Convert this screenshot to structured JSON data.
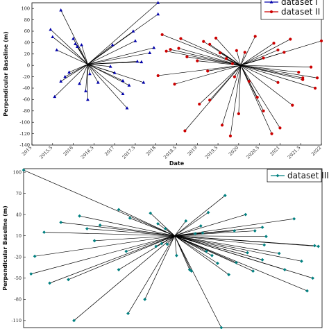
{
  "chart_data": [
    {
      "type": "scatter",
      "xlabel": "Date",
      "ylabel": "Perpendicular Baseline (m)",
      "xlim": [
        2015,
        2022
      ],
      "ylim": [
        -140,
        110
      ],
      "xticks": [
        "2015",
        "2015.5",
        "2016",
        "2016.5",
        "2017",
        "2017.5",
        "2018",
        "2018.5",
        "2019",
        "2019.5",
        "2020",
        "2020.5",
        "2021",
        "2021.5",
        "2022"
      ],
      "yticks": [
        "100",
        "80",
        "60",
        "40",
        "20",
        "0",
        "-20",
        "-40",
        "-60",
        "-80",
        "-100",
        "-120",
        "-140"
      ],
      "legend_position": "top-right",
      "series": [
        {
          "name": "dataset I",
          "color": "#0000aa",
          "marker": "triangle",
          "master": [
            2016.35,
            2
          ],
          "points": [
            [
              2015.7,
              97
            ],
            [
              2015.45,
              63
            ],
            [
              2015.5,
              50
            ],
            [
              2015.6,
              27
            ],
            [
              2015.7,
              -28
            ],
            [
              2015.8,
              -20
            ],
            [
              2015.55,
              -55
            ],
            [
              2016.0,
              47
            ],
            [
              2016.05,
              38
            ],
            [
              2016.1,
              33
            ],
            [
              2016.2,
              36
            ],
            [
              2016.3,
              -45
            ],
            [
              2016.35,
              -60
            ],
            [
              2016.9,
              -2
            ],
            [
              2016.95,
              36
            ],
            [
              2017.2,
              -50
            ],
            [
              2017.3,
              -75
            ],
            [
              2017.35,
              -35
            ],
            [
              2017.45,
              60
            ],
            [
              2017.5,
              43
            ],
            [
              2017.55,
              7
            ],
            [
              2017.65,
              6
            ],
            [
              2017.85,
              22
            ],
            [
              2017.95,
              31
            ],
            [
              2018.05,
              90
            ],
            [
              2017.7,
              -30
            ],
            [
              2016.4,
              -15
            ],
            [
              2016.6,
              -30
            ],
            [
              2017.0,
              -13
            ],
            [
              2017.2,
              -27
            ],
            [
              2015.9,
              -12
            ],
            [
              2016.15,
              -32
            ],
            [
              2018.05,
              110
            ]
          ]
        },
        {
          "name": "dataset II",
          "color": "#cc0000",
          "marker": "circle",
          "master": [
            2020.05,
            0
          ],
          "points": [
            [
              2018.15,
              54
            ],
            [
              2018.25,
              25
            ],
            [
              2018.35,
              28
            ],
            [
              2018.55,
              30
            ],
            [
              2018.6,
              47
            ],
            [
              2018.75,
              15
            ],
            [
              2019.0,
              8
            ],
            [
              2019.15,
              42
            ],
            [
              2019.3,
              37
            ],
            [
              2019.45,
              48
            ],
            [
              2019.55,
              22
            ],
            [
              2019.7,
              12
            ],
            [
              2019.85,
              3
            ],
            [
              2019.95,
              26
            ],
            [
              2020.15,
              23
            ],
            [
              2020.4,
              51
            ],
            [
              2020.6,
              13
            ],
            [
              2020.85,
              39
            ],
            [
              2020.95,
              27
            ],
            [
              2021.1,
              23
            ],
            [
              2021.25,
              46
            ],
            [
              2021.45,
              -12
            ],
            [
              2021.55,
              -25
            ],
            [
              2021.75,
              -3
            ],
            [
              2021.85,
              -40
            ],
            [
              2021.9,
              -22
            ],
            [
              2022.0,
              43
            ],
            [
              2018.05,
              -18
            ],
            [
              2018.45,
              -33
            ],
            [
              2018.7,
              -115
            ],
            [
              2019.05,
              -68
            ],
            [
              2019.3,
              -61
            ],
            [
              2019.6,
              -105
            ],
            [
              2019.8,
              -124
            ],
            [
              2020.0,
              -85
            ],
            [
              2020.25,
              -28
            ],
            [
              2020.45,
              -56
            ],
            [
              2020.6,
              -80
            ],
            [
              2020.8,
              -120
            ],
            [
              2021.0,
              -110
            ],
            [
              2021.3,
              -70
            ],
            [
              2021.55,
              -22
            ],
            [
              2020.95,
              -30
            ],
            [
              2019.25,
              -10
            ],
            [
              2019.9,
              -20
            ]
          ]
        }
      ]
    },
    {
      "type": "scatter",
      "xlabel": "",
      "ylabel": "Perpendicular Baseline (m)",
      "xlim": [
        0,
        8
      ],
      "ylim": [
        -120,
        105
      ],
      "yticks": [
        "100",
        "70",
        "40",
        "10",
        "-20",
        "-50",
        "-80",
        "-110"
      ],
      "legend_position": "top-right",
      "series": [
        {
          "name": "dataset III",
          "color": "#008080",
          "marker": "diamond",
          "master": [
            4.05,
            10
          ],
          "points": [
            [
              0.0,
              103
            ],
            [
              0.55,
              15
            ],
            [
              1.0,
              29
            ],
            [
              1.5,
              38
            ],
            [
              1.7,
              20
            ],
            [
              2.05,
              25
            ],
            [
              2.55,
              47
            ],
            [
              3.4,
              42
            ],
            [
              2.85,
              35
            ],
            [
              3.6,
              27
            ],
            [
              3.8,
              20
            ],
            [
              1.9,
              3
            ],
            [
              2.75,
              -12
            ],
            [
              2.55,
              -38
            ],
            [
              1.2,
              -52
            ],
            [
              0.7,
              -57
            ],
            [
              0.2,
              -44
            ],
            [
              0.3,
              -19
            ],
            [
              1.35,
              -110
            ],
            [
              2.8,
              -100
            ],
            [
              3.25,
              -80
            ],
            [
              3.7,
              -1
            ],
            [
              3.55,
              -5
            ],
            [
              4.6,
              13
            ],
            [
              4.5,
              -40
            ],
            [
              4.9,
              -12
            ],
            [
              5.2,
              -29
            ],
            [
              5.7,
              -28
            ],
            [
              5.65,
              17
            ],
            [
              6.0,
              -14
            ],
            [
              6.2,
              17
            ],
            [
              6.4,
              -24
            ],
            [
              6.5,
              9
            ],
            [
              6.45,
              -3
            ],
            [
              6.85,
              -15
            ],
            [
              7.45,
              -26
            ],
            [
              7.8,
              -4
            ],
            [
              7.75,
              -50
            ],
            [
              7.6,
              -68
            ],
            [
              7.25,
              34
            ],
            [
              6.4,
              -24
            ],
            [
              5.4,
              67
            ],
            [
              4.95,
              43
            ],
            [
              4.75,
              24
            ],
            [
              4.35,
              31
            ],
            [
              3.85,
              -2
            ],
            [
              4.45,
              -38
            ],
            [
              4.8,
              14
            ],
            [
              5.05,
              -18
            ],
            [
              5.5,
              -45
            ],
            [
              6.15,
              -40
            ],
            [
              6.4,
              22
            ],
            [
              7.0,
              -38
            ],
            [
              4.1,
              -18
            ],
            [
              5.3,
              -120
            ],
            [
              5.95,
              40
            ],
            [
              7.9,
              -5
            ]
          ]
        }
      ]
    }
  ]
}
